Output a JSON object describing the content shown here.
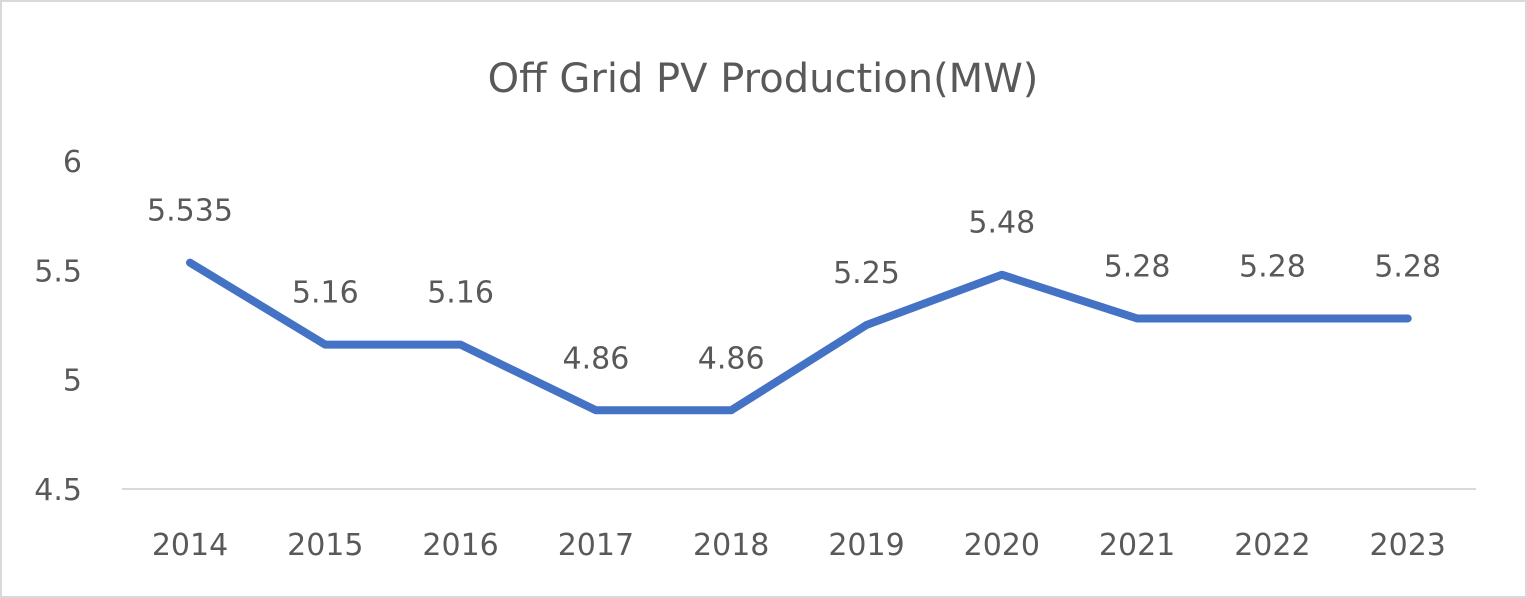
{
  "chart_data": {
    "type": "line",
    "title": "Off Grid PV Production(MW)",
    "xlabel": "",
    "ylabel": "",
    "categories": [
      "2014",
      "2015",
      "2016",
      "2017",
      "2018",
      "2019",
      "2020",
      "2021",
      "2022",
      "2023"
    ],
    "series": [
      {
        "values": [
          5.535,
          5.16,
          5.16,
          4.86,
          4.86,
          5.25,
          5.48,
          5.28,
          5.28,
          5.28
        ],
        "color": "#4472C4"
      }
    ],
    "data_labels": [
      "5.535",
      "5.16",
      "5.16",
      "4.86",
      "4.86",
      "5.25",
      "5.48",
      "5.28",
      "5.28",
      "5.28"
    ],
    "ylim": [
      4.5,
      6
    ],
    "yticks": [
      "4.5",
      "5",
      "5.5",
      "6"
    ],
    "grid": false,
    "legend": "none"
  }
}
